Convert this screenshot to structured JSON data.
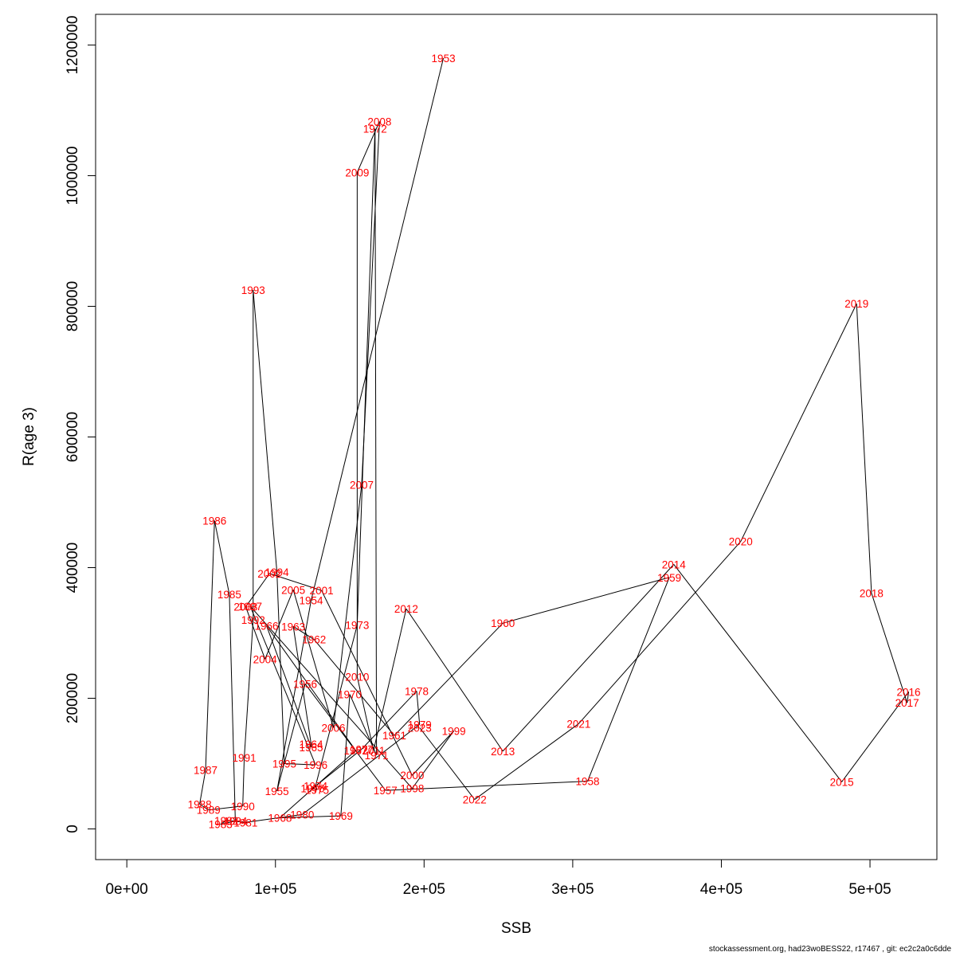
{
  "footer": "stockassessment.org, had23woBESS22, r17467 , git: ec2c2a0c6dde",
  "chart_data": {
    "type": "line",
    "xlabel": "SSB",
    "ylabel": "R(age 3)",
    "xlim": [
      -21000,
      545000
    ],
    "ylim": [
      -47000,
      1247000
    ],
    "x_ticks": [
      0,
      100000,
      200000,
      300000,
      400000,
      500000
    ],
    "x_tick_labels": [
      "0e+00",
      "1e+05",
      "2e+05",
      "3e+05",
      "4e+05",
      "5e+05"
    ],
    "y_ticks": [
      0,
      200000,
      400000,
      600000,
      800000,
      1000000,
      1200000
    ],
    "y_tick_labels": [
      "0",
      "200000",
      "400000",
      "600000",
      "800000",
      "1000000",
      "1200000"
    ],
    "grid": false,
    "line_color": "#000000",
    "label_color": "#ff0000",
    "points": [
      {
        "year": "1953",
        "ssb": 213000,
        "r": 1180000
      },
      {
        "year": "1954",
        "ssb": 124000,
        "r": 350000
      },
      {
        "year": "1955",
        "ssb": 101000,
        "r": 58000
      },
      {
        "year": "1956",
        "ssb": 120000,
        "r": 222000
      },
      {
        "year": "1957",
        "ssb": 174000,
        "r": 59000
      },
      {
        "year": "1958",
        "ssb": 310000,
        "r": 73000
      },
      {
        "year": "1959",
        "ssb": 365000,
        "r": 385000
      },
      {
        "year": "1960",
        "ssb": 253000,
        "r": 315000
      },
      {
        "year": "1961",
        "ssb": 180000,
        "r": 143000
      },
      {
        "year": "1962",
        "ssb": 126000,
        "r": 290000
      },
      {
        "year": "1963",
        "ssb": 112000,
        "r": 310000
      },
      {
        "year": "1964",
        "ssb": 124000,
        "r": 130000
      },
      {
        "year": "1965",
        "ssb": 124000,
        "r": 125000
      },
      {
        "year": "1966",
        "ssb": 94000,
        "r": 311000
      },
      {
        "year": "1967",
        "ssb": 154000,
        "r": 120000
      },
      {
        "year": "1968",
        "ssb": 103000,
        "r": 17000
      },
      {
        "year": "1969",
        "ssb": 144000,
        "r": 20000
      },
      {
        "year": "1970",
        "ssb": 150000,
        "r": 206000
      },
      {
        "year": "1971",
        "ssb": 168000,
        "r": 113000
      },
      {
        "year": "1972",
        "ssb": 167000,
        "r": 1072000
      },
      {
        "year": "1973",
        "ssb": 155000,
        "r": 312000
      },
      {
        "year": "1974",
        "ssb": 127000,
        "r": 66000
      },
      {
        "year": "1975",
        "ssb": 128000,
        "r": 60000
      },
      {
        "year": "1976",
        "ssb": 125000,
        "r": 62000
      },
      {
        "year": "1977",
        "ssb": 158000,
        "r": 122000
      },
      {
        "year": "1978",
        "ssb": 195000,
        "r": 211000
      },
      {
        "year": "1979",
        "ssb": 197000,
        "r": 160000
      },
      {
        "year": "1980",
        "ssb": 118000,
        "r": 22000
      },
      {
        "year": "1981",
        "ssb": 80000,
        "r": 10000
      },
      {
        "year": "1982",
        "ssb": 67000,
        "r": 13000
      },
      {
        "year": "1983",
        "ssb": 63000,
        "r": 7000
      },
      {
        "year": "1984",
        "ssb": 73000,
        "r": 12000
      },
      {
        "year": "1985",
        "ssb": 69000,
        "r": 359000
      },
      {
        "year": "1986",
        "ssb": 59000,
        "r": 472000
      },
      {
        "year": "1987",
        "ssb": 53000,
        "r": 90000
      },
      {
        "year": "1988",
        "ssb": 49000,
        "r": 38000
      },
      {
        "year": "1989",
        "ssb": 55000,
        "r": 29000
      },
      {
        "year": "1990",
        "ssb": 78000,
        "r": 35000
      },
      {
        "year": "1991",
        "ssb": 79000,
        "r": 109000
      },
      {
        "year": "1992",
        "ssb": 85000,
        "r": 320000
      },
      {
        "year": "1993",
        "ssb": 85000,
        "r": 825000
      },
      {
        "year": "1994",
        "ssb": 101000,
        "r": 393000
      },
      {
        "year": "1995",
        "ssb": 106000,
        "r": 100000
      },
      {
        "year": "1996",
        "ssb": 127000,
        "r": 98000
      },
      {
        "year": "1997",
        "ssb": 83000,
        "r": 341000
      },
      {
        "year": "1998",
        "ssb": 192000,
        "r": 62000
      },
      {
        "year": "1999",
        "ssb": 220000,
        "r": 150000
      },
      {
        "year": "2000",
        "ssb": 192000,
        "r": 82000
      },
      {
        "year": "2001",
        "ssb": 131000,
        "r": 365000
      },
      {
        "year": "2002",
        "ssb": 96000,
        "r": 391000
      },
      {
        "year": "2003",
        "ssb": 80000,
        "r": 340000
      },
      {
        "year": "2004",
        "ssb": 93000,
        "r": 260000
      },
      {
        "year": "2005",
        "ssb": 112000,
        "r": 366000
      },
      {
        "year": "2006",
        "ssb": 139000,
        "r": 155000
      },
      {
        "year": "2007",
        "ssb": 158000,
        "r": 527000
      },
      {
        "year": "2008",
        "ssb": 170000,
        "r": 1083000
      },
      {
        "year": "2009",
        "ssb": 155000,
        "r": 1005000
      },
      {
        "year": "2010",
        "ssb": 155000,
        "r": 233000
      },
      {
        "year": "2011",
        "ssb": 166000,
        "r": 120000
      },
      {
        "year": "2012",
        "ssb": 188000,
        "r": 337000
      },
      {
        "year": "2013",
        "ssb": 253000,
        "r": 119000
      },
      {
        "year": "2014",
        "ssb": 368000,
        "r": 405000
      },
      {
        "year": "2015",
        "ssb": 481000,
        "r": 72000
      },
      {
        "year": "2016",
        "ssb": 526000,
        "r": 210000
      },
      {
        "year": "2017",
        "ssb": 525000,
        "r": 193000
      },
      {
        "year": "2018",
        "ssb": 501000,
        "r": 361000
      },
      {
        "year": "2019",
        "ssb": 491000,
        "r": 804000
      },
      {
        "year": "2020",
        "ssb": 413000,
        "r": 440000
      },
      {
        "year": "2021",
        "ssb": 304000,
        "r": 161000
      },
      {
        "year": "2022",
        "ssb": 234000,
        "r": 45000
      },
      {
        "year": "2023",
        "ssb": 197000,
        "r": 155000
      }
    ]
  }
}
